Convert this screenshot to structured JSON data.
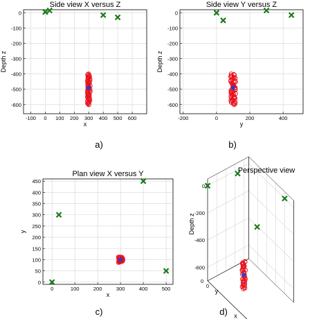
{
  "panel_labels": [
    "a)",
    "b)",
    "c)",
    "d)"
  ],
  "chart_data": [
    {
      "type": "scatter",
      "title": "Side view X versus Z",
      "xlabel": "x",
      "ylabel": "Depth z",
      "xlim": [
        -150,
        700
      ],
      "ylim": [
        -660,
        20
      ],
      "xticks": [
        -100,
        0,
        100,
        200,
        300,
        400,
        500,
        600
      ],
      "yticks": [
        0,
        -100,
        -200,
        -300,
        -400,
        -500,
        -600
      ],
      "grid": true,
      "series": [
        {
          "marker": "x",
          "color": "#1a7a1a",
          "points": [
            [
              0,
              5
            ],
            [
              30,
              15
            ],
            [
              400,
              -15
            ],
            [
              500,
              -30
            ]
          ]
        },
        {
          "marker": "o",
          "color": "#e8101a",
          "x_range": [
            290,
            310
          ],
          "y_range": [
            -600,
            -400
          ],
          "count": 55
        },
        {
          "marker": "*",
          "color": "#1f3fd6",
          "points": [
            [
              300,
              -490
            ]
          ]
        }
      ]
    },
    {
      "type": "scatter",
      "title": "Side view Y versus Z",
      "xlabel": "y",
      "ylabel": "Depth z",
      "xlim": [
        -220,
        520
      ],
      "ylim": [
        -660,
        20
      ],
      "xticks": [
        -200,
        0,
        200,
        400
      ],
      "yticks": [
        0,
        -100,
        -200,
        -300,
        -400,
        -500,
        -600
      ],
      "grid": true,
      "series": [
        {
          "marker": "x",
          "color": "#1a7a1a",
          "points": [
            [
              0,
              0
            ],
            [
              40,
              -50
            ],
            [
              300,
              15
            ],
            [
              450,
              -15
            ]
          ]
        },
        {
          "marker": "o",
          "color": "#e8101a",
          "x_range": [
            85,
            115
          ],
          "y_range": [
            -600,
            -400
          ],
          "count": 55
        },
        {
          "marker": "*",
          "color": "#1f3fd6",
          "points": [
            [
              100,
              -490
            ]
          ]
        }
      ]
    },
    {
      "type": "scatter",
      "title": "Plan view X versus Y",
      "xlabel": "x",
      "ylabel": "y",
      "xlim": [
        -40,
        530
      ],
      "ylim": [
        -10,
        460
      ],
      "xticks": [
        0,
        100,
        200,
        300,
        400,
        500
      ],
      "yticks": [
        0,
        50,
        100,
        150,
        200,
        250,
        300,
        350,
        400,
        450
      ],
      "grid": true,
      "series": [
        {
          "marker": "x",
          "color": "#1a7a1a",
          "points": [
            [
              0,
              0
            ],
            [
              30,
              300
            ],
            [
              400,
              450
            ],
            [
              500,
              50
            ]
          ]
        },
        {
          "marker": "o",
          "color": "#e8101a",
          "x_range": [
            290,
            310
          ],
          "y_range": [
            88,
            112
          ],
          "count": 30
        },
        {
          "marker": "*",
          "color": "#1f3fd6",
          "points": [
            [
              300,
              100
            ]
          ]
        }
      ]
    },
    {
      "type": "scatter",
      "title": "Perspective view",
      "xlabel": "x",
      "ylabel": "y",
      "zlabel": "Depth z",
      "zticks": [
        0,
        -200,
        -400,
        -600
      ],
      "xticks": [
        0,
        500
      ],
      "yticks": [
        0
      ],
      "grid": true,
      "series": [
        {
          "marker": "x",
          "color": "#1a7a1a",
          "points": [
            [
              0,
              0,
              0
            ],
            [
              30,
              300,
              0
            ],
            [
              400,
              450,
              0
            ],
            [
              500,
              50,
              0
            ]
          ]
        },
        {
          "marker": "o",
          "color": "#e8101a",
          "x_range": [
            290,
            310
          ],
          "y_range": [
            90,
            110
          ],
          "z_range": [
            -600,
            -400
          ],
          "count": 40
        },
        {
          "marker": "*",
          "color": "#1f3fd6",
          "points": [
            [
              300,
              100,
              -500
            ]
          ]
        }
      ]
    }
  ]
}
